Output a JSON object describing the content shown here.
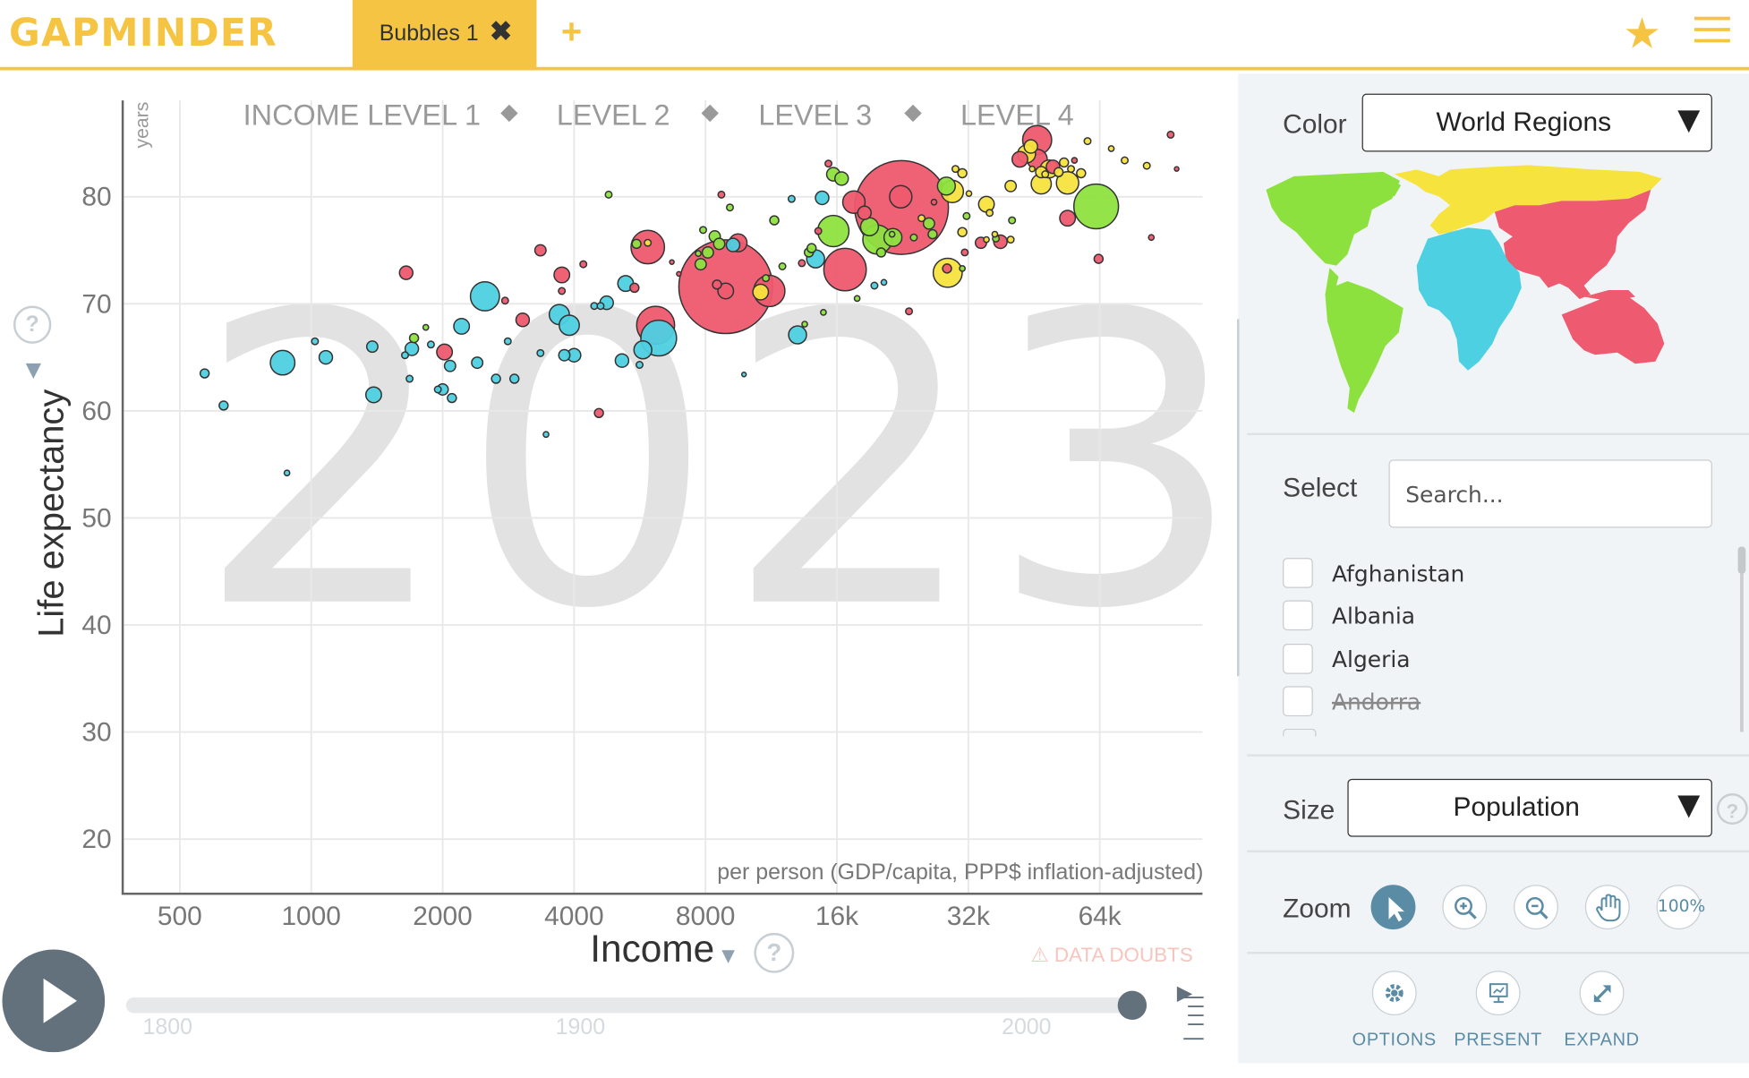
{
  "header": {
    "logo": "GAPMINDER",
    "tab_label": "Bubbles 1",
    "tab_close": "✖",
    "add_tab": "+",
    "star": "★"
  },
  "chart_data": {
    "type": "scatter",
    "year_watermark": "2023",
    "xlabel": "Income",
    "xunit": "per person (GDP/capita, PPP$ inflation-adjusted)",
    "ylabel": "Life expectancy",
    "yunit": "years",
    "xscale": "log",
    "xlim": [
      370,
      110000
    ],
    "ylim": [
      15,
      89
    ],
    "xticks": [
      {
        "v": 500,
        "l": "500"
      },
      {
        "v": 1000,
        "l": "1000"
      },
      {
        "v": 2000,
        "l": "2000"
      },
      {
        "v": 4000,
        "l": "4000"
      },
      {
        "v": 8000,
        "l": "8000"
      },
      {
        "v": 16000,
        "l": "16k"
      },
      {
        "v": 32000,
        "l": "32k"
      },
      {
        "v": 64000,
        "l": "64k"
      }
    ],
    "yticks": [
      20,
      30,
      40,
      50,
      60,
      70,
      80
    ],
    "income_levels": [
      "INCOME LEVEL 1",
      "LEVEL 2",
      "LEVEL 3",
      "LEVEL 4"
    ],
    "color_by": "World Regions",
    "size_by": "Population",
    "regions": {
      "africa": "#4dd0e1",
      "asia": "#ee5a6f",
      "europe": "#f6e33e",
      "americas": "#8de13f"
    },
    "points": [
      {
        "x": 570,
        "y": 63.5,
        "r": 4,
        "c": "africa"
      },
      {
        "x": 630,
        "y": 60.5,
        "r": 4,
        "c": "africa"
      },
      {
        "x": 860,
        "y": 64.5,
        "r": 11,
        "c": "africa"
      },
      {
        "x": 880,
        "y": 54.2,
        "r": 2.5,
        "c": "africa"
      },
      {
        "x": 1020,
        "y": 66.5,
        "r": 3,
        "c": "africa"
      },
      {
        "x": 1080,
        "y": 65,
        "r": 6,
        "c": "africa"
      },
      {
        "x": 1380,
        "y": 66,
        "r": 5,
        "c": "africa"
      },
      {
        "x": 1390,
        "y": 61.5,
        "r": 7,
        "c": "africa"
      },
      {
        "x": 1650,
        "y": 72.9,
        "r": 6,
        "c": "asia"
      },
      {
        "x": 1640,
        "y": 65.2,
        "r": 3,
        "c": "africa"
      },
      {
        "x": 1680,
        "y": 63,
        "r": 3,
        "c": "africa"
      },
      {
        "x": 1700,
        "y": 65.8,
        "r": 6,
        "c": "africa"
      },
      {
        "x": 1720,
        "y": 66.8,
        "r": 4,
        "c": "americas"
      },
      {
        "x": 1830,
        "y": 67.8,
        "r": 2.5,
        "c": "americas"
      },
      {
        "x": 1880,
        "y": 66.2,
        "r": 3,
        "c": "africa"
      },
      {
        "x": 1950,
        "y": 62,
        "r": 3,
        "c": "africa"
      },
      {
        "x": 2000,
        "y": 62,
        "r": 5,
        "c": "africa"
      },
      {
        "x": 2020,
        "y": 65.5,
        "r": 7,
        "c": "asia"
      },
      {
        "x": 2080,
        "y": 64.2,
        "r": 5,
        "c": "africa"
      },
      {
        "x": 2100,
        "y": 61.2,
        "r": 4,
        "c": "africa"
      },
      {
        "x": 2210,
        "y": 67.9,
        "r": 7,
        "c": "africa"
      },
      {
        "x": 2400,
        "y": 64.5,
        "r": 5,
        "c": "africa"
      },
      {
        "x": 2500,
        "y": 70.7,
        "r": 13,
        "c": "africa"
      },
      {
        "x": 2650,
        "y": 63,
        "r": 4,
        "c": "africa"
      },
      {
        "x": 2780,
        "y": 70.3,
        "r": 3,
        "c": "asia"
      },
      {
        "x": 2820,
        "y": 66.5,
        "r": 3,
        "c": "africa"
      },
      {
        "x": 2920,
        "y": 63,
        "r": 4,
        "c": "africa"
      },
      {
        "x": 3050,
        "y": 68.5,
        "r": 6,
        "c": "asia"
      },
      {
        "x": 3350,
        "y": 75,
        "r": 5,
        "c": "asia"
      },
      {
        "x": 3350,
        "y": 65.4,
        "r": 3,
        "c": "africa"
      },
      {
        "x": 3450,
        "y": 57.8,
        "r": 2.5,
        "c": "africa"
      },
      {
        "x": 3700,
        "y": 69,
        "r": 9,
        "c": "africa"
      },
      {
        "x": 3750,
        "y": 72.7,
        "r": 7,
        "c": "asia"
      },
      {
        "x": 3750,
        "y": 71.2,
        "r": 3,
        "c": "asia"
      },
      {
        "x": 3800,
        "y": 65.2,
        "r": 5,
        "c": "africa"
      },
      {
        "x": 3900,
        "y": 68,
        "r": 9,
        "c": "africa"
      },
      {
        "x": 4000,
        "y": 65.2,
        "r": 6,
        "c": "africa"
      },
      {
        "x": 4200,
        "y": 73.7,
        "r": 3,
        "c": "asia"
      },
      {
        "x": 4450,
        "y": 69.8,
        "r": 3,
        "c": "africa"
      },
      {
        "x": 4560,
        "y": 59.8,
        "r": 4,
        "c": "asia"
      },
      {
        "x": 4600,
        "y": 69.8,
        "r": 3,
        "c": "africa"
      },
      {
        "x": 4750,
        "y": 70.1,
        "r": 6,
        "c": "africa"
      },
      {
        "x": 4800,
        "y": 80.2,
        "r": 3,
        "c": "americas"
      },
      {
        "x": 5150,
        "y": 64.7,
        "r": 6,
        "c": "africa"
      },
      {
        "x": 5250,
        "y": 71.9,
        "r": 7,
        "c": "africa"
      },
      {
        "x": 5500,
        "y": 71.5,
        "r": 4,
        "c": "asia"
      },
      {
        "x": 5560,
        "y": 75.6,
        "r": 4,
        "c": "americas"
      },
      {
        "x": 5650,
        "y": 64.3,
        "r": 3,
        "c": "africa"
      },
      {
        "x": 5750,
        "y": 65.7,
        "r": 8,
        "c": "africa"
      },
      {
        "x": 5900,
        "y": 75.3,
        "r": 15,
        "c": "asia"
      },
      {
        "x": 5900,
        "y": 75.7,
        "r": 3,
        "c": "europe"
      },
      {
        "x": 6150,
        "y": 68,
        "r": 17,
        "c": "asia"
      },
      {
        "x": 6250,
        "y": 66.8,
        "r": 16,
        "c": "africa"
      },
      {
        "x": 6700,
        "y": 73.9,
        "r": 2,
        "c": "asia"
      },
      {
        "x": 6950,
        "y": 72.8,
        "r": 2,
        "c": "asia"
      },
      {
        "x": 7700,
        "y": 74.7,
        "r": 2.5,
        "c": "americas"
      },
      {
        "x": 7800,
        "y": 73.7,
        "r": 5,
        "c": "americas"
      },
      {
        "x": 7900,
        "y": 76.9,
        "r": 3,
        "c": "americas"
      },
      {
        "x": 8100,
        "y": 74.8,
        "r": 5,
        "c": "americas"
      },
      {
        "x": 8400,
        "y": 76.3,
        "r": 5,
        "c": "americas"
      },
      {
        "x": 8500,
        "y": 71.8,
        "r": 4,
        "c": "asia"
      },
      {
        "x": 8600,
        "y": 75.6,
        "r": 5,
        "c": "americas"
      },
      {
        "x": 8900,
        "y": 71.6,
        "r": 42,
        "c": "asia"
      },
      {
        "x": 8900,
        "y": 71.2,
        "r": 7,
        "c": "asia"
      },
      {
        "x": 8700,
        "y": 80.2,
        "r": 3,
        "c": "asia"
      },
      {
        "x": 9100,
        "y": 79,
        "r": 3,
        "c": "americas"
      },
      {
        "x": 9250,
        "y": 75.5,
        "r": 6,
        "c": "africa"
      },
      {
        "x": 9500,
        "y": 75.7,
        "r": 8,
        "c": "asia"
      },
      {
        "x": 9800,
        "y": 63.4,
        "r": 2,
        "c": "africa"
      },
      {
        "x": 10700,
        "y": 71.1,
        "r": 7,
        "c": "europe"
      },
      {
        "x": 11000,
        "y": 72.4,
        "r": 3,
        "c": "americas"
      },
      {
        "x": 11200,
        "y": 71.2,
        "r": 14,
        "c": "asia"
      },
      {
        "x": 11500,
        "y": 77.8,
        "r": 4,
        "c": "americas"
      },
      {
        "x": 12000,
        "y": 73.5,
        "r": 3,
        "c": "americas"
      },
      {
        "x": 12600,
        "y": 79.8,
        "r": 3,
        "c": "africa"
      },
      {
        "x": 13000,
        "y": 67.1,
        "r": 8,
        "c": "africa"
      },
      {
        "x": 13300,
        "y": 73.8,
        "r": 3,
        "c": "asia"
      },
      {
        "x": 13500,
        "y": 68.1,
        "r": 2.5,
        "c": "americas"
      },
      {
        "x": 13800,
        "y": 74.8,
        "r": 4,
        "c": "americas"
      },
      {
        "x": 14000,
        "y": 75.2,
        "r": 4,
        "c": "americas"
      },
      {
        "x": 14300,
        "y": 74.2,
        "r": 8,
        "c": "africa"
      },
      {
        "x": 14500,
        "y": 76.8,
        "r": 3,
        "c": "asia"
      },
      {
        "x": 14800,
        "y": 79.9,
        "r": 6,
        "c": "africa"
      },
      {
        "x": 14900,
        "y": 69.2,
        "r": 2.5,
        "c": "americas"
      },
      {
        "x": 15300,
        "y": 83.1,
        "r": 3,
        "c": "asia"
      },
      {
        "x": 15700,
        "y": 76.8,
        "r": 14,
        "c": "americas"
      },
      {
        "x": 15700,
        "y": 82.1,
        "r": 6,
        "c": "americas"
      },
      {
        "x": 16400,
        "y": 81.7,
        "r": 6,
        "c": "americas"
      },
      {
        "x": 16700,
        "y": 73.2,
        "r": 19,
        "c": "asia"
      },
      {
        "x": 17500,
        "y": 79.5,
        "r": 10,
        "c": "asia"
      },
      {
        "x": 18500,
        "y": 78.5,
        "r": 6,
        "c": "asia"
      },
      {
        "x": 17800,
        "y": 70.5,
        "r": 2.5,
        "c": "americas"
      },
      {
        "x": 19000,
        "y": 77.2,
        "r": 8,
        "c": "americas"
      },
      {
        "x": 19500,
        "y": 71.7,
        "r": 3,
        "c": "africa"
      },
      {
        "x": 19800,
        "y": 76,
        "r": 13,
        "c": "americas"
      },
      {
        "x": 20200,
        "y": 74.8,
        "r": 4,
        "c": "americas"
      },
      {
        "x": 20500,
        "y": 72,
        "r": 2.5,
        "c": "africa"
      },
      {
        "x": 21400,
        "y": 76.5,
        "r": 2.5,
        "c": "americas"
      },
      {
        "x": 21500,
        "y": 76.2,
        "r": 8,
        "c": "americas"
      },
      {
        "x": 22500,
        "y": 79,
        "r": 42,
        "c": "asia"
      },
      {
        "x": 22400,
        "y": 80,
        "r": 10,
        "c": "asia"
      },
      {
        "x": 23400,
        "y": 69.3,
        "r": 3,
        "c": "asia"
      },
      {
        "x": 24000,
        "y": 76.2,
        "r": 3,
        "c": "americas"
      },
      {
        "x": 25000,
        "y": 78,
        "r": 3,
        "c": "europe"
      },
      {
        "x": 26000,
        "y": 77.5,
        "r": 5,
        "c": "americas"
      },
      {
        "x": 26500,
        "y": 76.5,
        "r": 4,
        "c": "americas"
      },
      {
        "x": 26700,
        "y": 79.5,
        "r": 2.5,
        "c": "asia"
      },
      {
        "x": 28500,
        "y": 81,
        "r": 8,
        "c": "americas"
      },
      {
        "x": 29400,
        "y": 80.5,
        "r": 10,
        "c": "europe"
      },
      {
        "x": 29900,
        "y": 82.6,
        "r": 3,
        "c": "europe"
      },
      {
        "x": 31000,
        "y": 82.2,
        "r": 4,
        "c": "europe"
      },
      {
        "x": 31400,
        "y": 74.8,
        "r": 3,
        "c": "asia"
      },
      {
        "x": 31700,
        "y": 78.2,
        "r": 3,
        "c": "americas"
      },
      {
        "x": 32100,
        "y": 80.3,
        "r": 2.5,
        "c": "europe"
      },
      {
        "x": 31000,
        "y": 73.3,
        "r": 2.5,
        "c": "americas"
      },
      {
        "x": 28700,
        "y": 72.9,
        "r": 13,
        "c": "europe"
      },
      {
        "x": 28600,
        "y": 73.3,
        "r": 4,
        "c": "asia"
      },
      {
        "x": 31000,
        "y": 76.7,
        "r": 4,
        "c": "europe"
      },
      {
        "x": 35200,
        "y": 79.3,
        "r": 7,
        "c": "europe"
      },
      {
        "x": 34200,
        "y": 75.7,
        "r": 5,
        "c": "asia"
      },
      {
        "x": 35800,
        "y": 78.5,
        "r": 3,
        "c": "europe"
      },
      {
        "x": 35200,
        "y": 76,
        "r": 2.5,
        "c": "europe"
      },
      {
        "x": 37000,
        "y": 76.1,
        "r": 3,
        "c": "americas"
      },
      {
        "x": 36800,
        "y": 76.5,
        "r": 2.5,
        "c": "europe"
      },
      {
        "x": 37900,
        "y": 75.8,
        "r": 6,
        "c": "asia"
      },
      {
        "x": 40300,
        "y": 77.8,
        "r": 3,
        "c": "americas"
      },
      {
        "x": 40000,
        "y": 81,
        "r": 5,
        "c": "europe"
      },
      {
        "x": 40000,
        "y": 76,
        "r": 3,
        "c": "europe"
      },
      {
        "x": 42000,
        "y": 83.5,
        "r": 7,
        "c": "asia"
      },
      {
        "x": 43500,
        "y": 84,
        "r": 8,
        "c": "europe"
      },
      {
        "x": 44500,
        "y": 84.7,
        "r": 6,
        "c": "europe"
      },
      {
        "x": 44800,
        "y": 82.6,
        "r": 2.5,
        "c": "europe"
      },
      {
        "x": 46000,
        "y": 85.3,
        "r": 13,
        "c": "asia"
      },
      {
        "x": 46000,
        "y": 83.5,
        "r": 9,
        "c": "asia"
      },
      {
        "x": 47000,
        "y": 81.2,
        "r": 9,
        "c": "europe"
      },
      {
        "x": 47000,
        "y": 82.3,
        "r": 5,
        "c": "europe"
      },
      {
        "x": 48000,
        "y": 82.1,
        "r": 3,
        "c": "europe"
      },
      {
        "x": 49000,
        "y": 82.6,
        "r": 8,
        "c": "europe"
      },
      {
        "x": 50000,
        "y": 82.8,
        "r": 6,
        "c": "asia"
      },
      {
        "x": 51500,
        "y": 82.3,
        "r": 4,
        "c": "europe"
      },
      {
        "x": 53000,
        "y": 83.2,
        "r": 4,
        "c": "europe"
      },
      {
        "x": 54000,
        "y": 81.3,
        "r": 10,
        "c": "europe"
      },
      {
        "x": 55000,
        "y": 82.6,
        "r": 3,
        "c": "europe"
      },
      {
        "x": 56000,
        "y": 83.4,
        "r": 2.5,
        "c": "asia"
      },
      {
        "x": 54000,
        "y": 78,
        "r": 7,
        "c": "asia"
      },
      {
        "x": 58000,
        "y": 82.2,
        "r": 4,
        "c": "europe"
      },
      {
        "x": 60000,
        "y": 85.2,
        "r": 3,
        "c": "europe"
      },
      {
        "x": 62800,
        "y": 79.1,
        "r": 20,
        "c": "americas"
      },
      {
        "x": 63600,
        "y": 74.2,
        "r": 4,
        "c": "asia"
      },
      {
        "x": 68000,
        "y": 84.5,
        "r": 2.5,
        "c": "europe"
      },
      {
        "x": 73000,
        "y": 83.4,
        "r": 3,
        "c": "europe"
      },
      {
        "x": 82000,
        "y": 82.9,
        "r": 3,
        "c": "europe"
      },
      {
        "x": 84000,
        "y": 76.2,
        "r": 2.5,
        "c": "asia"
      },
      {
        "x": 93000,
        "y": 85.8,
        "r": 3,
        "c": "asia"
      },
      {
        "x": 96000,
        "y": 82.6,
        "r": 2,
        "c": "asia"
      }
    ]
  },
  "income": {
    "label": "Income",
    "arrow": "▼",
    "help": "?",
    "doubts": "⚠ DATA DOUBTS"
  },
  "yaxis": {
    "arrow": "▶",
    "help": "?"
  },
  "timeline": {
    "years": [
      {
        "label": "1800",
        "left": 128
      },
      {
        "label": "1900",
        "left": 498
      },
      {
        "label": "2000",
        "left": 898
      }
    ],
    "progress": 1.0
  },
  "panel": {
    "color_label": "Color",
    "color_value": "World Regions",
    "select_label": "Select",
    "search_placeholder": "Search...",
    "countries": [
      {
        "name": "Afghanistan",
        "disabled": false
      },
      {
        "name": "Albania",
        "disabled": false
      },
      {
        "name": "Algeria",
        "disabled": false
      },
      {
        "name": "Andorra",
        "disabled": true
      }
    ],
    "size_label": "Size",
    "size_value": "Population",
    "size_help": "?",
    "zoom_label": "Zoom",
    "zoom_100": "100%",
    "actions": [
      "OPTIONS",
      "PRESENT",
      "EXPAND"
    ]
  }
}
